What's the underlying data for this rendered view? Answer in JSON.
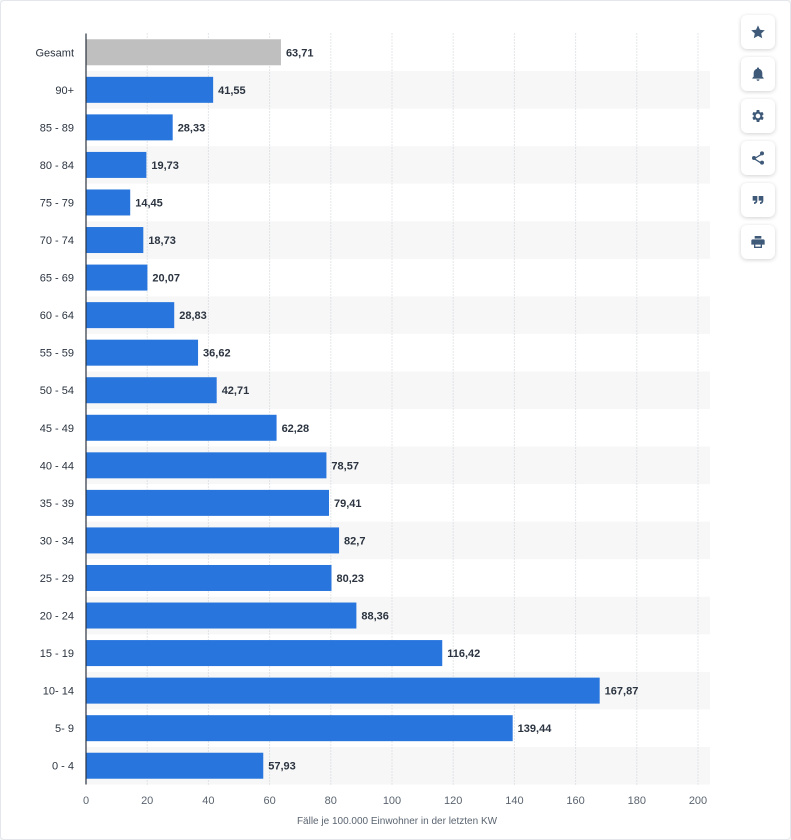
{
  "chart_data": {
    "type": "bar",
    "orientation": "horizontal",
    "title": "",
    "xlabel": "Fälle je 100.000 Einwohner in der letzten KW",
    "ylabel": "",
    "xlim": [
      0,
      200
    ],
    "xticks": [
      0,
      20,
      40,
      60,
      80,
      100,
      120,
      140,
      160,
      180,
      200
    ],
    "grid": "vertical dotted",
    "categories": [
      "Gesamt",
      "90+",
      "85 - 89",
      "80 - 84",
      "75 - 79",
      "70 - 74",
      "65 - 69",
      "60 - 64",
      "55 - 59",
      "50 - 54",
      "45 - 49",
      "40 - 44",
      "35 - 39",
      "30 - 34",
      "25 - 29",
      "20 - 24",
      "15 - 19",
      "10- 14",
      "5- 9",
      "0 - 4"
    ],
    "values": [
      63.71,
      41.55,
      28.33,
      19.73,
      14.45,
      18.73,
      20.07,
      28.83,
      36.62,
      42.71,
      62.28,
      78.57,
      79.41,
      82.7,
      80.23,
      88.36,
      116.42,
      167.87,
      139.44,
      57.93
    ],
    "value_labels": [
      "63,71",
      "41,55",
      "28,33",
      "19,73",
      "14,45",
      "18,73",
      "20,07",
      "28,83",
      "36,62",
      "42,71",
      "62,28",
      "78,57",
      "79,41",
      "82,7",
      "80,23",
      "88,36",
      "116,42",
      "167,87",
      "139,44",
      "57,93"
    ],
    "highlight_index": 0
  },
  "colors": {
    "bar": "#2876dd",
    "highlight_bar": "#bfbfbf",
    "band": "#f7f7f7",
    "grid": "#c9ced4",
    "axis": "#2b3440"
  },
  "toolbar": [
    {
      "icon": "star-icon",
      "name": "favorite-button"
    },
    {
      "icon": "bell-icon",
      "name": "notification-button"
    },
    {
      "icon": "gear-icon",
      "name": "settings-button"
    },
    {
      "icon": "share-icon",
      "name": "share-button"
    },
    {
      "icon": "quote-icon",
      "name": "cite-button"
    },
    {
      "icon": "print-icon",
      "name": "print-button"
    }
  ]
}
